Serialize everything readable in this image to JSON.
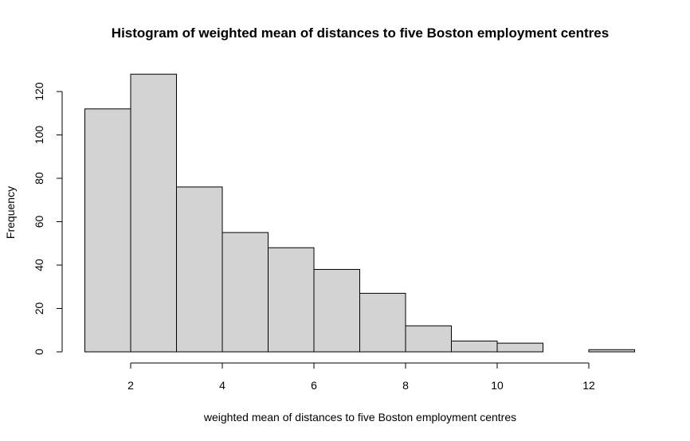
{
  "chart_data": {
    "type": "bar",
    "title": "Histogram of weighted mean of distances to five Boston employment centres",
    "xlabel": "weighted mean of distances to five Boston employment centres",
    "ylabel": "Frequency",
    "bins": [
      {
        "start": 1,
        "end": 2,
        "count": 112
      },
      {
        "start": 2,
        "end": 3,
        "count": 128
      },
      {
        "start": 3,
        "end": 4,
        "count": 76
      },
      {
        "start": 4,
        "end": 5,
        "count": 55
      },
      {
        "start": 5,
        "end": 6,
        "count": 48
      },
      {
        "start": 6,
        "end": 7,
        "count": 38
      },
      {
        "start": 7,
        "end": 8,
        "count": 27
      },
      {
        "start": 8,
        "end": 9,
        "count": 12
      },
      {
        "start": 9,
        "end": 10,
        "count": 5
      },
      {
        "start": 10,
        "end": 11,
        "count": 4
      },
      {
        "start": 11,
        "end": 12,
        "count": 0
      },
      {
        "start": 12,
        "end": 13,
        "count": 1
      }
    ],
    "xticks": [
      "2",
      "4",
      "6",
      "8",
      "10",
      "12"
    ],
    "yticks": [
      "0",
      "20",
      "40",
      "60",
      "80",
      "100",
      "120"
    ],
    "xlim": [
      2,
      12
    ],
    "ylim": [
      0,
      120
    ],
    "bar_fill": "#d3d3d3",
    "bar_stroke": "#000000",
    "grid": false,
    "legend": false
  }
}
